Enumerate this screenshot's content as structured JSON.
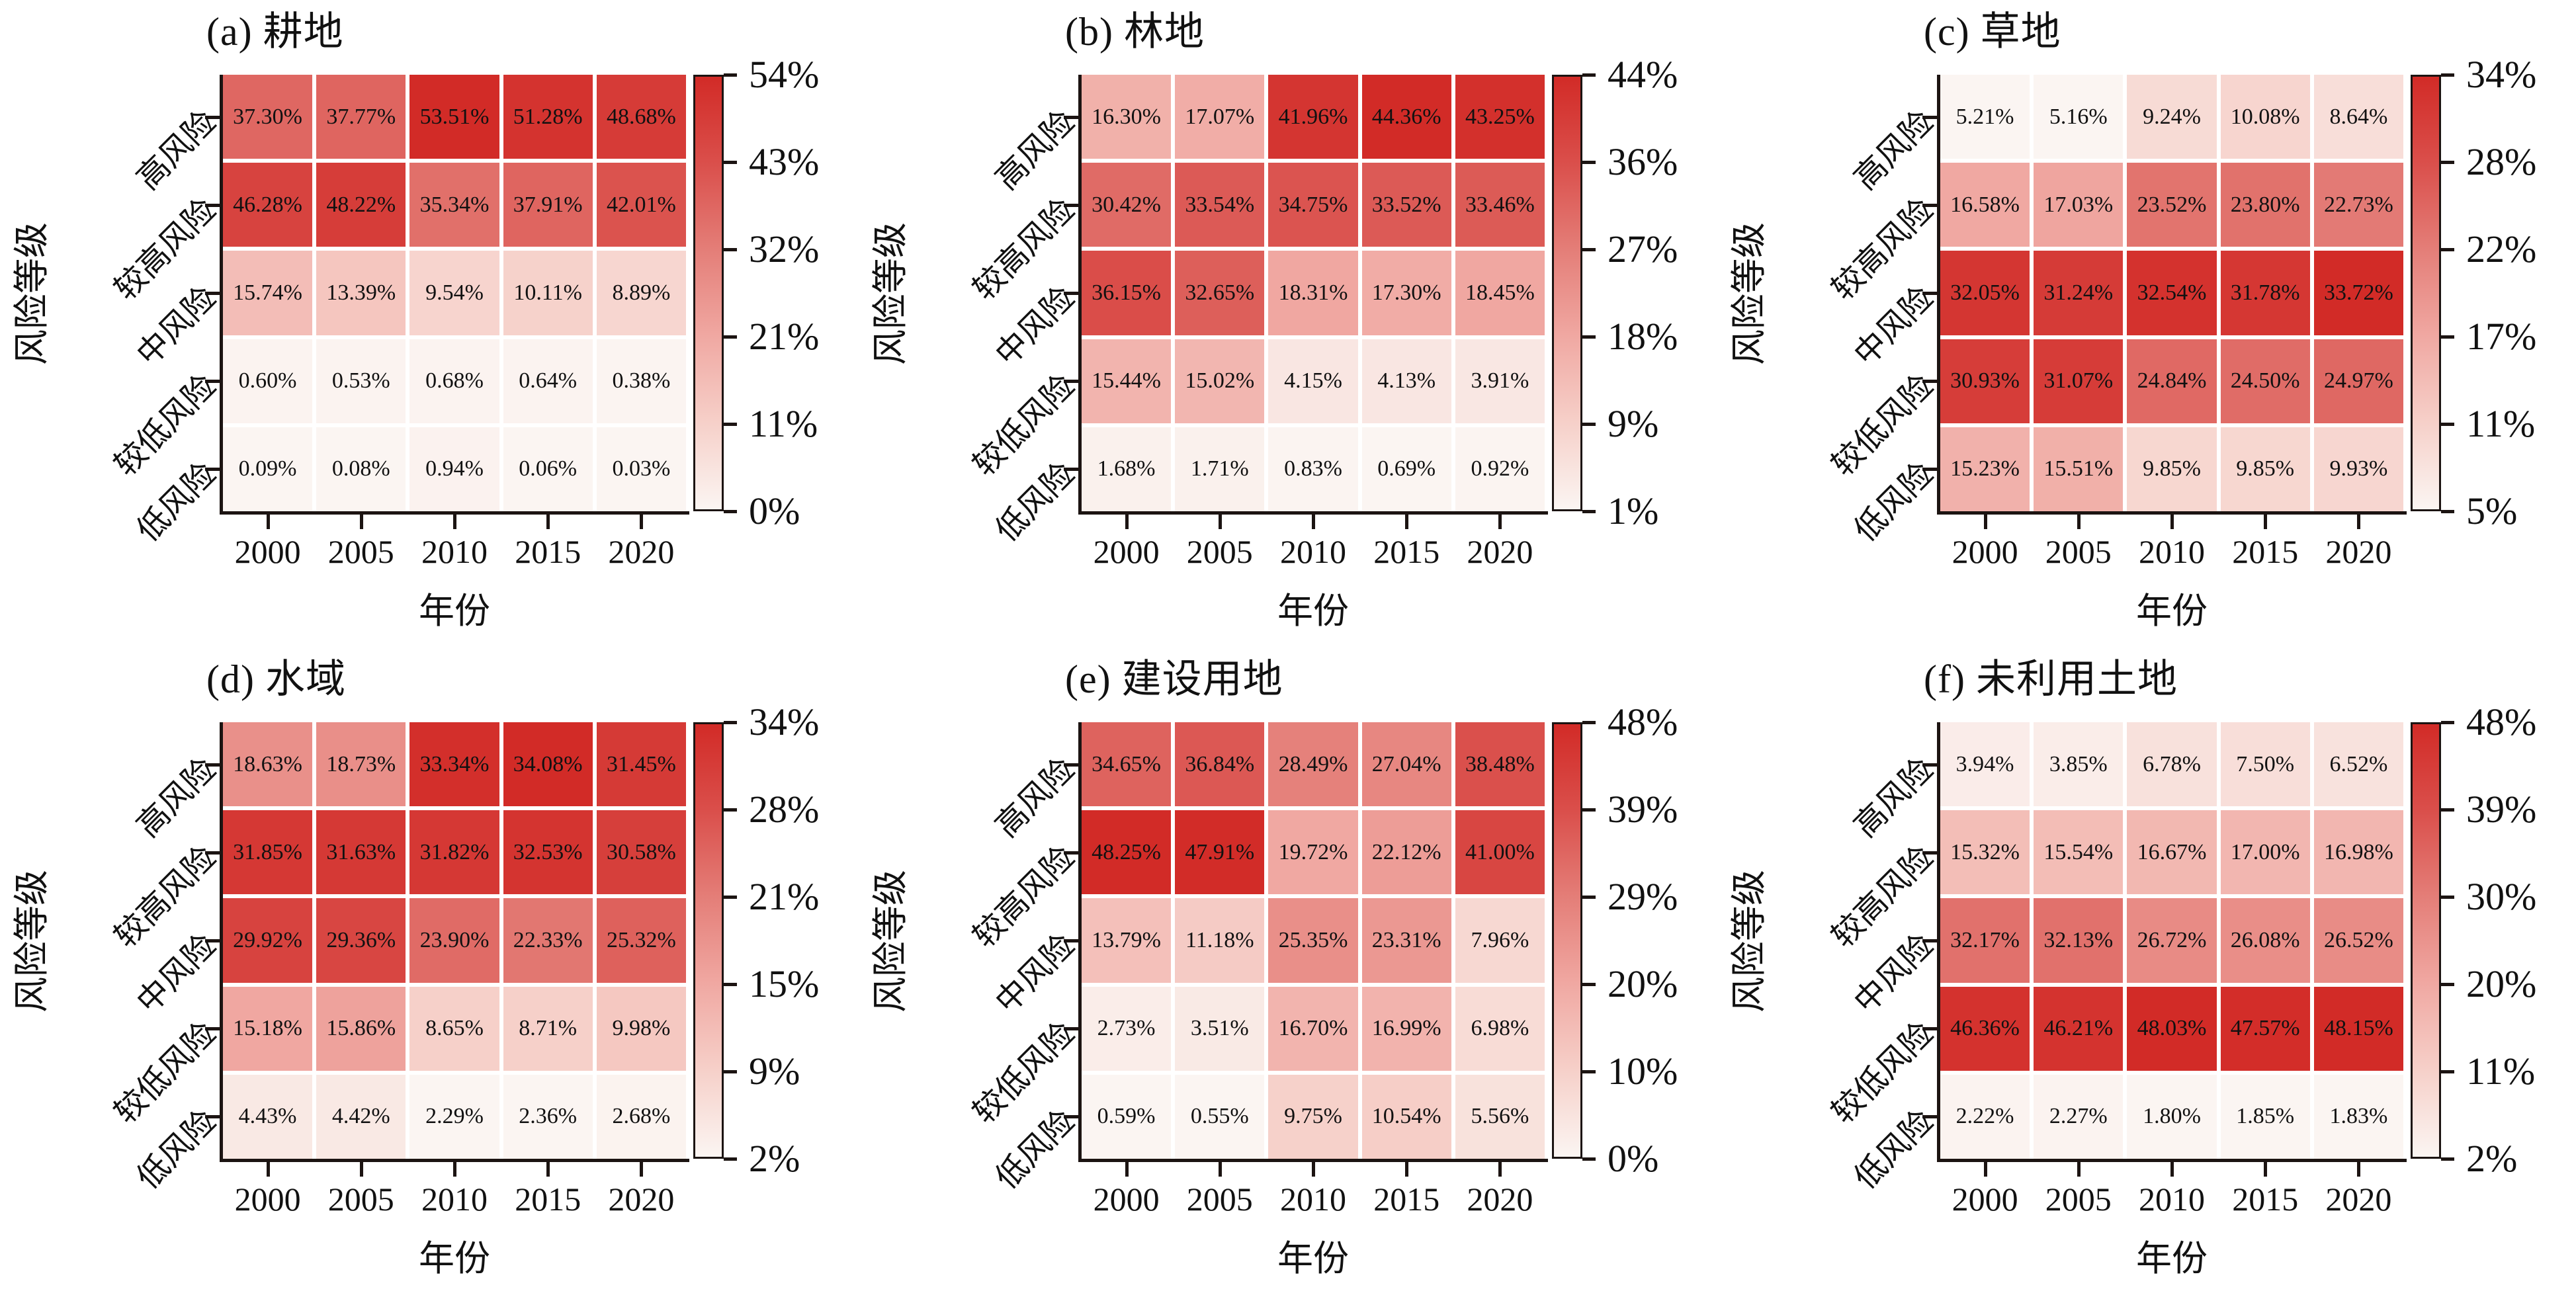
{
  "figure": {
    "x_label": "年份",
    "y_label": "风险等级",
    "years": [
      "2000",
      "2005",
      "2010",
      "2015",
      "2020"
    ],
    "risk_levels": [
      "高风险",
      "较高风险",
      "中风险",
      "较低风险",
      "低风险"
    ]
  },
  "colors": {
    "background": "#ffffff",
    "axis": "#1c1412",
    "text": "#111111",
    "heat_stops": [
      "#fbf5f2",
      "#f6d0c9",
      "#f0a8a2",
      "#e47e78",
      "#da4f4b",
      "#d22b27"
    ]
  },
  "chart_data": [
    {
      "type": "heatmap",
      "title": "(a) 耕地",
      "xlabel": "年份",
      "ylabel": "风险等级",
      "x": [
        "2000",
        "2005",
        "2010",
        "2015",
        "2020"
      ],
      "y": [
        "高风险",
        "较高风险",
        "中风险",
        "较低风险",
        "低风险"
      ],
      "values": [
        [
          "37.30%",
          "37.77%",
          "53.51%",
          "51.28%",
          "48.68%"
        ],
        [
          "46.28%",
          "48.22%",
          "35.34%",
          "37.91%",
          "42.01%"
        ],
        [
          "15.74%",
          "13.39%",
          "9.54%",
          "10.11%",
          "8.89%"
        ],
        [
          "0.60%",
          "0.53%",
          "0.68%",
          "0.64%",
          "0.38%"
        ],
        [
          "0.09%",
          "0.08%",
          "0.94%",
          "0.06%",
          "0.03%"
        ]
      ],
      "colorbar_ticks": [
        "54%",
        "43%",
        "32%",
        "21%",
        "11%",
        "0%"
      ]
    },
    {
      "type": "heatmap",
      "title": "(b) 林地",
      "xlabel": "年份",
      "ylabel": "风险等级",
      "x": [
        "2000",
        "2005",
        "2010",
        "2015",
        "2020"
      ],
      "y": [
        "高风险",
        "较高风险",
        "中风险",
        "较低风险",
        "低风险"
      ],
      "values": [
        [
          "16.30%",
          "17.07%",
          "41.96%",
          "44.36%",
          "43.25%"
        ],
        [
          "30.42%",
          "33.54%",
          "34.75%",
          "33.52%",
          "33.46%"
        ],
        [
          "36.15%",
          "32.65%",
          "18.31%",
          "17.30%",
          "18.45%"
        ],
        [
          "15.44%",
          "15.02%",
          "4.15%",
          "4.13%",
          "3.91%"
        ],
        [
          "1.68%",
          "1.71%",
          "0.83%",
          "0.69%",
          "0.92%"
        ]
      ],
      "colorbar_ticks": [
        "44%",
        "36%",
        "27%",
        "18%",
        "9%",
        "1%"
      ]
    },
    {
      "type": "heatmap",
      "title": "(c) 草地",
      "xlabel": "年份",
      "ylabel": "风险等级",
      "x": [
        "2000",
        "2005",
        "2010",
        "2015",
        "2020"
      ],
      "y": [
        "高风险",
        "较高风险",
        "中风险",
        "较低风险",
        "低风险"
      ],
      "values": [
        [
          "5.21%",
          "5.16%",
          "9.24%",
          "10.08%",
          "8.64%"
        ],
        [
          "16.58%",
          "17.03%",
          "23.52%",
          "23.80%",
          "22.73%"
        ],
        [
          "32.05%",
          "31.24%",
          "32.54%",
          "31.78%",
          "33.72%"
        ],
        [
          "30.93%",
          "31.07%",
          "24.84%",
          "24.50%",
          "24.97%"
        ],
        [
          "15.23%",
          "15.51%",
          "9.85%",
          "9.85%",
          "9.93%"
        ]
      ],
      "colorbar_ticks": [
        "34%",
        "28%",
        "22%",
        "17%",
        "11%",
        "5%"
      ]
    },
    {
      "type": "heatmap",
      "title": "(d) 水域",
      "xlabel": "年份",
      "ylabel": "风险等级",
      "x": [
        "2000",
        "2005",
        "2010",
        "2015",
        "2020"
      ],
      "y": [
        "高风险",
        "较高风险",
        "中风险",
        "较低风险",
        "低风险"
      ],
      "values": [
        [
          "18.63%",
          "18.73%",
          "33.34%",
          "34.08%",
          "31.45%"
        ],
        [
          "31.85%",
          "31.63%",
          "31.82%",
          "32.53%",
          "30.58%"
        ],
        [
          "29.92%",
          "29.36%",
          "23.90%",
          "22.33%",
          "25.32%"
        ],
        [
          "15.18%",
          "15.86%",
          "8.65%",
          "8.71%",
          "9.98%"
        ],
        [
          "4.43%",
          "4.42%",
          "2.29%",
          "2.36%",
          "2.68%"
        ]
      ],
      "colorbar_ticks": [
        "34%",
        "28%",
        "21%",
        "15%",
        "9%",
        "2%"
      ]
    },
    {
      "type": "heatmap",
      "title": "(e) 建设用地",
      "xlabel": "年份",
      "ylabel": "风险等级",
      "x": [
        "2000",
        "2005",
        "2010",
        "2015",
        "2020"
      ],
      "y": [
        "高风险",
        "较高风险",
        "中风险",
        "较低风险",
        "低风险"
      ],
      "values": [
        [
          "34.65%",
          "36.84%",
          "28.49%",
          "27.04%",
          "38.48%"
        ],
        [
          "48.25%",
          "47.91%",
          "19.72%",
          "22.12%",
          "41.00%"
        ],
        [
          "13.79%",
          "11.18%",
          "25.35%",
          "23.31%",
          "7.96%"
        ],
        [
          "2.73%",
          "3.51%",
          "16.70%",
          "16.99%",
          "6.98%"
        ],
        [
          "0.59%",
          "0.55%",
          "9.75%",
          "10.54%",
          "5.56%"
        ]
      ],
      "colorbar_ticks": [
        "48%",
        "39%",
        "29%",
        "20%",
        "10%",
        "0%"
      ]
    },
    {
      "type": "heatmap",
      "title": "(f) 未利用土地",
      "xlabel": "年份",
      "ylabel": "风险等级",
      "x": [
        "2000",
        "2005",
        "2010",
        "2015",
        "2020"
      ],
      "y": [
        "高风险",
        "较高风险",
        "中风险",
        "较低风险",
        "低风险"
      ],
      "values": [
        [
          "3.94%",
          "3.85%",
          "6.78%",
          "7.50%",
          "6.52%"
        ],
        [
          "15.32%",
          "15.54%",
          "16.67%",
          "17.00%",
          "16.98%"
        ],
        [
          "32.17%",
          "32.13%",
          "26.72%",
          "26.08%",
          "26.52%"
        ],
        [
          "46.36%",
          "46.21%",
          "48.03%",
          "47.57%",
          "48.15%"
        ],
        [
          "2.22%",
          "2.27%",
          "1.80%",
          "1.85%",
          "1.83%"
        ]
      ],
      "colorbar_ticks": [
        "48%",
        "39%",
        "30%",
        "20%",
        "11%",
        "2%"
      ]
    }
  ]
}
